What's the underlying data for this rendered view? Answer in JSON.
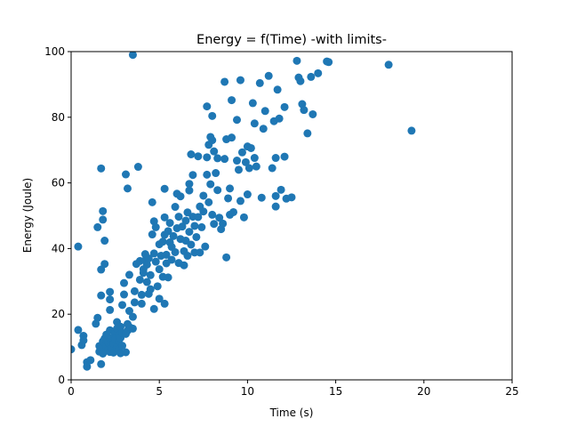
{
  "chart_data": {
    "type": "scatter",
    "title": "Energy = f(Time) -with limits-",
    "xlabel": "Time (s)",
    "ylabel": "Energy (Joule)",
    "xlim": [
      0,
      25
    ],
    "ylim": [
      0,
      100
    ],
    "xticks": [
      0,
      5,
      10,
      15,
      20,
      25
    ],
    "yticks": [
      0,
      20,
      40,
      60,
      80,
      100
    ],
    "grid": false,
    "legend": "none",
    "marker_color": "#1f77b4",
    "series": [
      {
        "points": [
          [
            0.0,
            9.3
          ],
          [
            0.4,
            40.6
          ],
          [
            0.4,
            15.2
          ],
          [
            0.6,
            10.6
          ],
          [
            0.7,
            13.4
          ],
          [
            0.7,
            12.0
          ],
          [
            0.9,
            4.0
          ],
          [
            0.9,
            5.4
          ],
          [
            1.1,
            6.0
          ],
          [
            1.4,
            17.1
          ],
          [
            1.5,
            18.9
          ],
          [
            1.5,
            46.5
          ],
          [
            1.7,
            33.6
          ],
          [
            1.7,
            25.7
          ],
          [
            1.7,
            4.8
          ],
          [
            1.7,
            64.4
          ],
          [
            1.8,
            48.8
          ],
          [
            1.8,
            51.4
          ],
          [
            1.9,
            35.3
          ],
          [
            1.9,
            42.4
          ],
          [
            1.6,
            8.6
          ],
          [
            1.6,
            10.3
          ],
          [
            1.7,
            9.4
          ],
          [
            1.8,
            11.7
          ],
          [
            1.8,
            8.0
          ],
          [
            1.9,
            12.6
          ],
          [
            2.0,
            10.1
          ],
          [
            2.0,
            13.8
          ],
          [
            2.1,
            9.0
          ],
          [
            2.1,
            11.4
          ],
          [
            2.2,
            24.5
          ],
          [
            2.2,
            26.8
          ],
          [
            2.2,
            21.3
          ],
          [
            2.2,
            8.5
          ],
          [
            2.2,
            15.1
          ],
          [
            2.3,
            12.1
          ],
          [
            2.3,
            10.7
          ],
          [
            2.3,
            9.6
          ],
          [
            2.4,
            13.1
          ],
          [
            2.4,
            11.0
          ],
          [
            2.4,
            8.3
          ],
          [
            2.5,
            14.7
          ],
          [
            2.5,
            12.4
          ],
          [
            2.6,
            10.0
          ],
          [
            2.6,
            17.6
          ],
          [
            2.6,
            15.6
          ],
          [
            2.7,
            9.2
          ],
          [
            2.7,
            11.9
          ],
          [
            2.7,
            13.5
          ],
          [
            2.8,
            8.1
          ],
          [
            2.8,
            16.2
          ],
          [
            2.8,
            12.8
          ],
          [
            2.9,
            14.3
          ],
          [
            2.9,
            10.4
          ],
          [
            2.9,
            22.8
          ],
          [
            3.0,
            29.5
          ],
          [
            3.0,
            26.0
          ],
          [
            3.1,
            14.0
          ],
          [
            3.1,
            8.4
          ],
          [
            3.1,
            62.6
          ],
          [
            3.2,
            58.3
          ],
          [
            3.2,
            17.0
          ],
          [
            3.2,
            15.0
          ],
          [
            3.3,
            16.1
          ],
          [
            3.3,
            32.0
          ],
          [
            3.3,
            21.0
          ],
          [
            3.5,
            99.0
          ],
          [
            3.5,
            19.2
          ],
          [
            3.5,
            15.6
          ],
          [
            3.6,
            23.6
          ],
          [
            3.6,
            27.0
          ],
          [
            3.7,
            35.3
          ],
          [
            3.8,
            64.9
          ],
          [
            3.9,
            36.2
          ],
          [
            3.9,
            30.5
          ],
          [
            4.0,
            25.9
          ],
          [
            4.0,
            23.2
          ],
          [
            4.1,
            33.7
          ],
          [
            4.1,
            32.6
          ],
          [
            4.2,
            36.4
          ],
          [
            4.2,
            38.3
          ],
          [
            4.3,
            35.1
          ],
          [
            4.3,
            29.8
          ],
          [
            4.4,
            37.0
          ],
          [
            4.4,
            26.2
          ],
          [
            4.5,
            27.6
          ],
          [
            4.5,
            31.9
          ],
          [
            4.6,
            54.1
          ],
          [
            4.6,
            44.3
          ],
          [
            4.7,
            38.5
          ],
          [
            4.7,
            48.3
          ],
          [
            4.7,
            21.6
          ],
          [
            4.8,
            36.0
          ],
          [
            4.8,
            46.5
          ],
          [
            4.9,
            28.5
          ],
          [
            5.0,
            24.7
          ],
          [
            5.0,
            33.7
          ],
          [
            5.0,
            41.3
          ],
          [
            5.1,
            37.8
          ],
          [
            5.2,
            42.1
          ],
          [
            5.2,
            31.4
          ],
          [
            5.3,
            23.2
          ],
          [
            5.3,
            58.2
          ],
          [
            5.3,
            49.5
          ],
          [
            5.3,
            44.2
          ],
          [
            5.4,
            35.5
          ],
          [
            5.4,
            38.1
          ],
          [
            5.5,
            45.3
          ],
          [
            5.5,
            31.2
          ],
          [
            5.6,
            41.9
          ],
          [
            5.6,
            47.8
          ],
          [
            5.7,
            40.5
          ],
          [
            5.7,
            36.6
          ],
          [
            5.8,
            43.8
          ],
          [
            5.9,
            52.7
          ],
          [
            5.9,
            38.9
          ],
          [
            6.0,
            56.7
          ],
          [
            6.0,
            46.2
          ],
          [
            6.1,
            49.7
          ],
          [
            6.1,
            35.6
          ],
          [
            6.2,
            42.9
          ],
          [
            6.2,
            55.9
          ],
          [
            6.3,
            46.7
          ],
          [
            6.4,
            39.2
          ],
          [
            6.4,
            34.9
          ],
          [
            6.5,
            42.4
          ],
          [
            6.5,
            48.5
          ],
          [
            6.6,
            51.0
          ],
          [
            6.6,
            37.8
          ],
          [
            6.7,
            57.7
          ],
          [
            6.7,
            59.7
          ],
          [
            6.7,
            45.1
          ],
          [
            6.8,
            68.7
          ],
          [
            6.8,
            41.2
          ],
          [
            6.9,
            62.4
          ],
          [
            6.9,
            49.7
          ],
          [
            7.0,
            38.8
          ],
          [
            7.0,
            46.9
          ],
          [
            7.1,
            43.5
          ],
          [
            7.2,
            49.6
          ],
          [
            7.2,
            68.1
          ],
          [
            7.3,
            52.8
          ],
          [
            7.3,
            38.8
          ],
          [
            7.4,
            46.5
          ],
          [
            7.5,
            51.3
          ],
          [
            7.5,
            56.1
          ],
          [
            7.6,
            40.6
          ],
          [
            7.7,
            67.8
          ],
          [
            7.7,
            83.3
          ],
          [
            7.7,
            62.5
          ],
          [
            7.8,
            71.6
          ],
          [
            7.8,
            54.1
          ],
          [
            7.9,
            74.0
          ],
          [
            7.9,
            59.6
          ],
          [
            8.0,
            80.4
          ],
          [
            8.0,
            73.0
          ],
          [
            8.0,
            50.3
          ],
          [
            8.1,
            69.6
          ],
          [
            8.1,
            47.5
          ],
          [
            8.2,
            63.0
          ],
          [
            8.3,
            67.5
          ],
          [
            8.3,
            57.8
          ],
          [
            8.4,
            49.4
          ],
          [
            8.5,
            45.9
          ],
          [
            8.6,
            47.6
          ],
          [
            8.7,
            90.8
          ],
          [
            8.7,
            67.3
          ],
          [
            8.8,
            73.3
          ],
          [
            8.8,
            37.3
          ],
          [
            8.9,
            55.3
          ],
          [
            9.0,
            58.3
          ],
          [
            9.0,
            50.3
          ],
          [
            9.1,
            73.8
          ],
          [
            9.1,
            85.2
          ],
          [
            9.2,
            51.1
          ],
          [
            9.4,
            66.8
          ],
          [
            9.4,
            79.2
          ],
          [
            9.5,
            64.0
          ],
          [
            9.6,
            91.3
          ],
          [
            9.6,
            54.5
          ],
          [
            9.7,
            69.3
          ],
          [
            9.8,
            49.5
          ],
          [
            9.9,
            66.3
          ],
          [
            10.0,
            71.1
          ],
          [
            10.0,
            56.5
          ],
          [
            10.1,
            64.5
          ],
          [
            10.2,
            70.6
          ],
          [
            10.3,
            84.3
          ],
          [
            10.4,
            67.6
          ],
          [
            10.4,
            78.1
          ],
          [
            10.5,
            65.0
          ],
          [
            10.7,
            90.4
          ],
          [
            10.8,
            55.5
          ],
          [
            10.9,
            76.5
          ],
          [
            11.0,
            81.9
          ],
          [
            11.2,
            92.6
          ],
          [
            11.4,
            64.5
          ],
          [
            11.5,
            78.8
          ],
          [
            11.6,
            52.8
          ],
          [
            11.6,
            56.0
          ],
          [
            11.6,
            67.6
          ],
          [
            11.7,
            88.4
          ],
          [
            11.8,
            79.6
          ],
          [
            11.9,
            57.9
          ],
          [
            12.1,
            83.1
          ],
          [
            12.1,
            68.0
          ],
          [
            12.2,
            55.2
          ],
          [
            12.5,
            55.6
          ],
          [
            12.8,
            97.2
          ],
          [
            12.9,
            92.1
          ],
          [
            13.0,
            91.0
          ],
          [
            13.1,
            84.0
          ],
          [
            13.2,
            82.2
          ],
          [
            13.4,
            75.1
          ],
          [
            13.6,
            92.3
          ],
          [
            13.7,
            80.9
          ],
          [
            14.0,
            93.4
          ],
          [
            14.5,
            97.0
          ],
          [
            14.6,
            96.8
          ],
          [
            18.0,
            96.0
          ],
          [
            19.3,
            75.9
          ]
        ]
      }
    ]
  }
}
